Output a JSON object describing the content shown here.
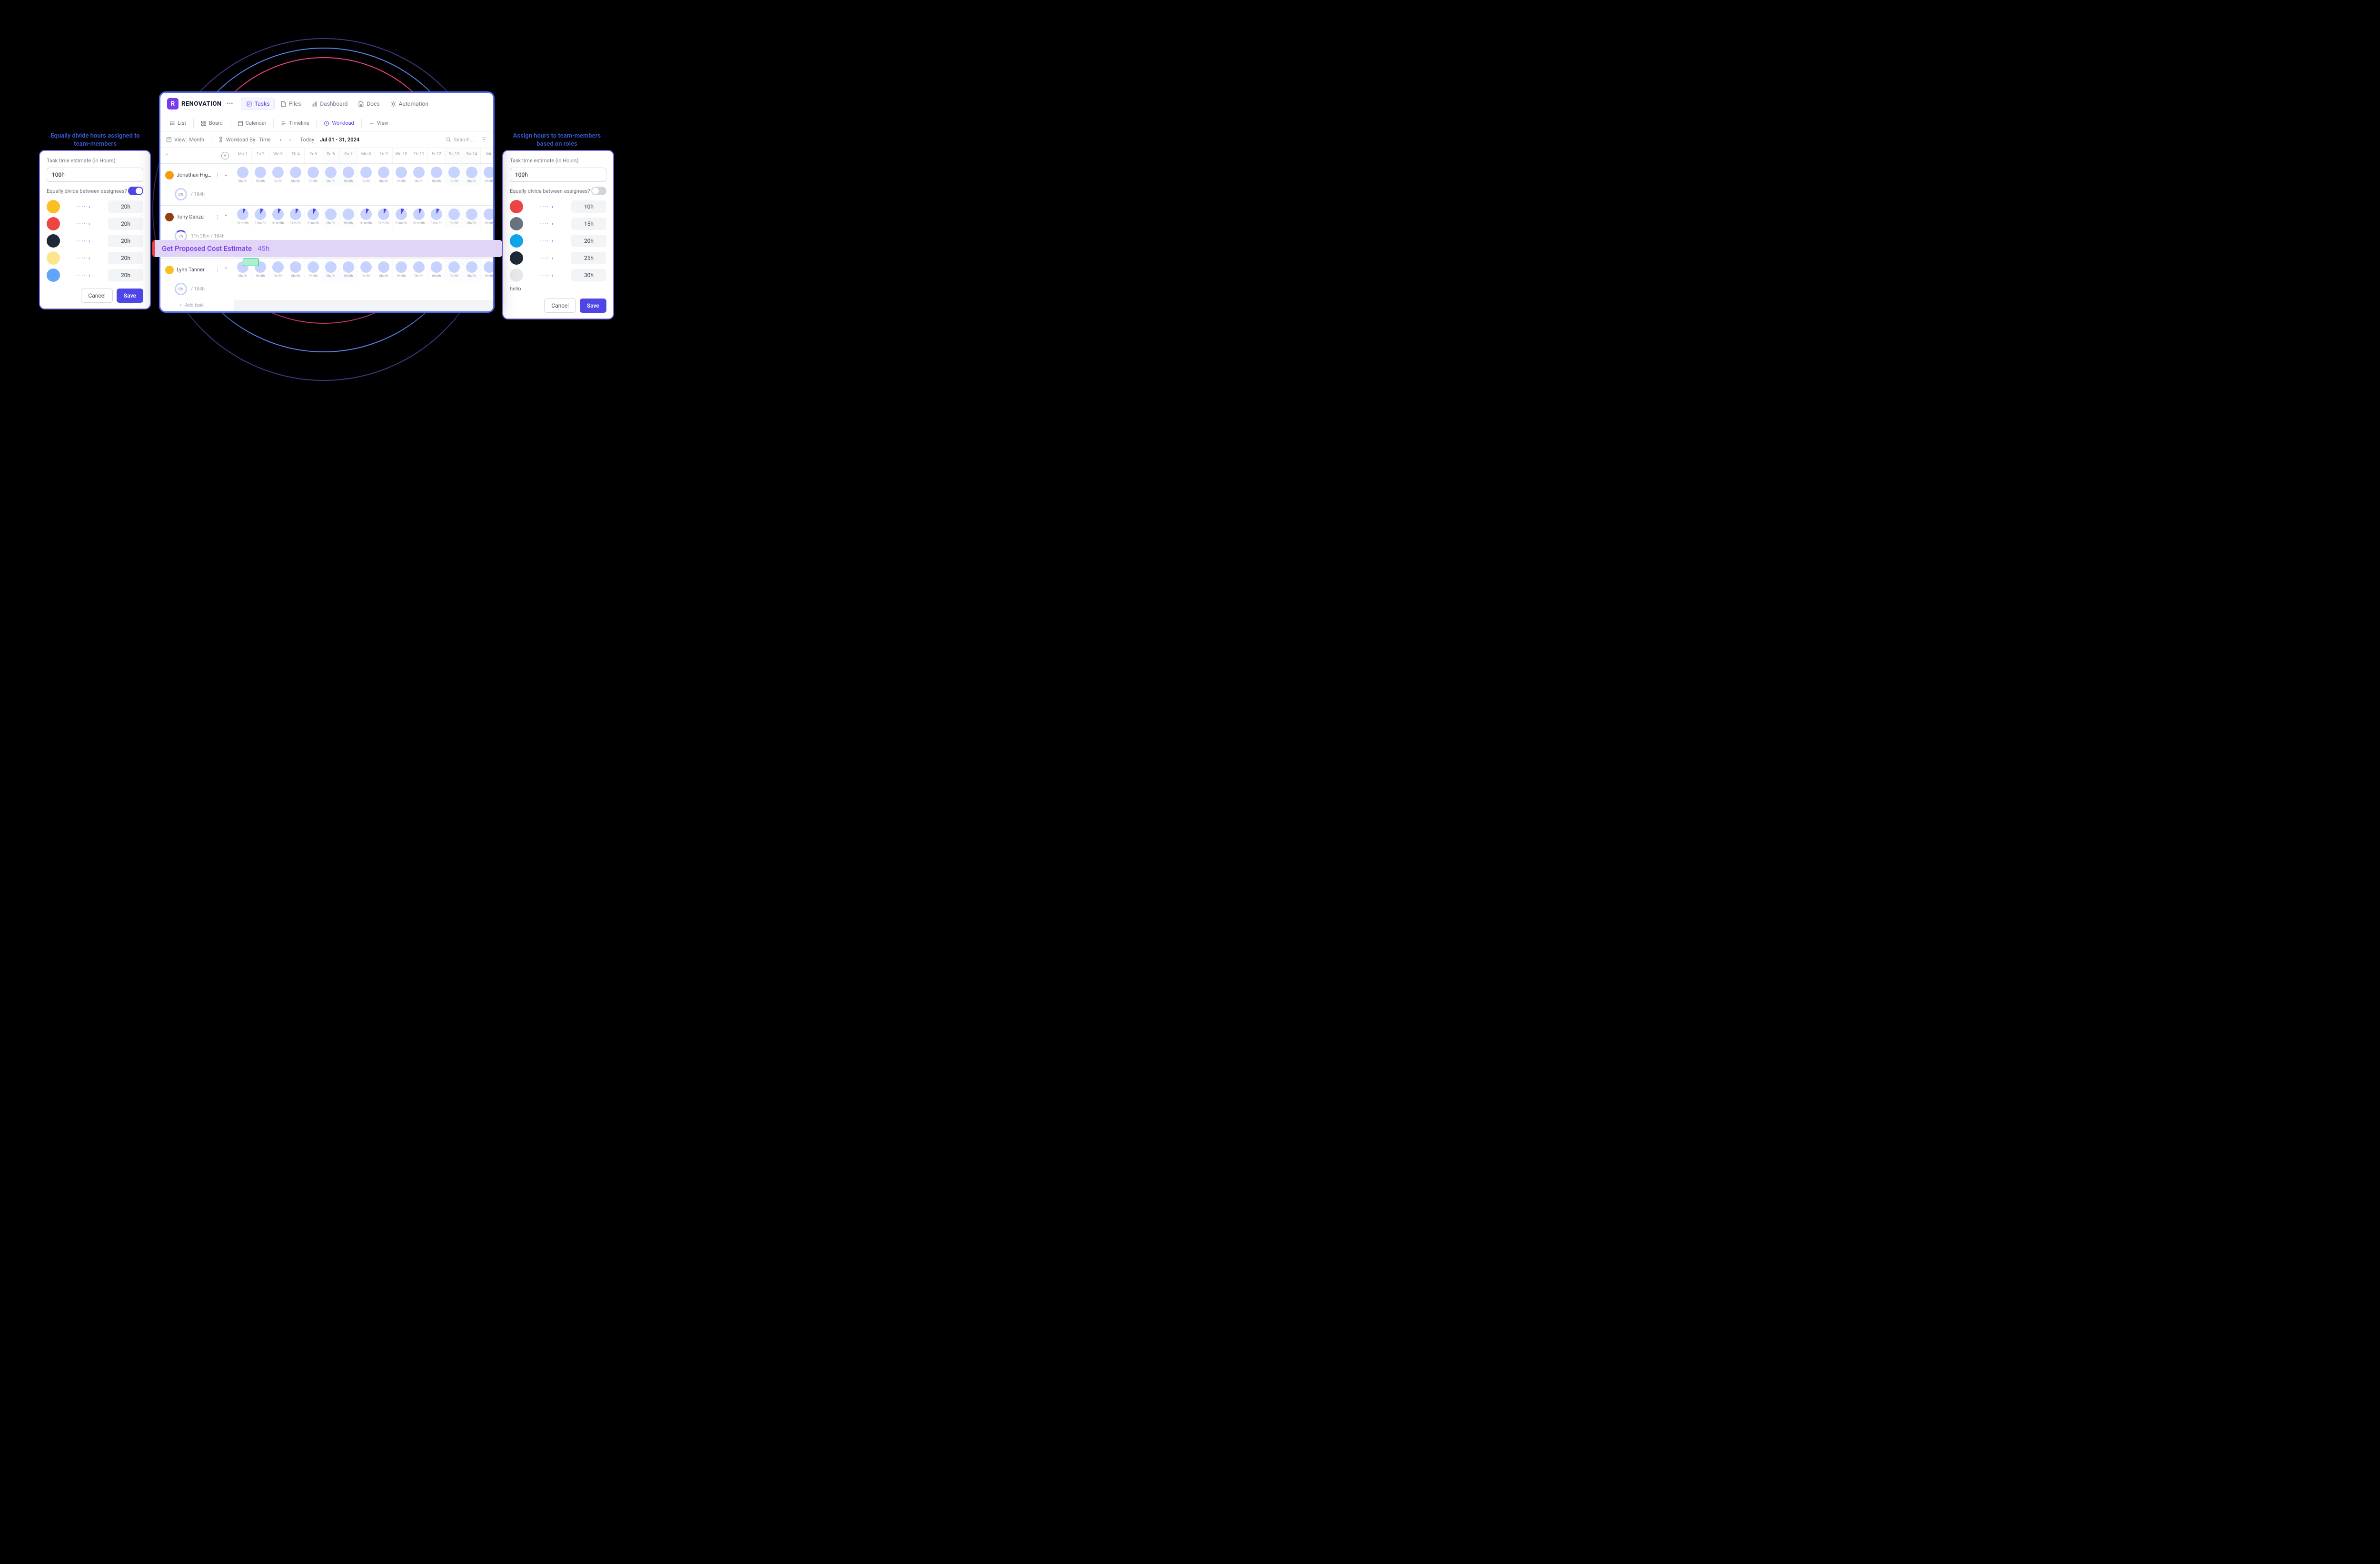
{
  "callouts": {
    "left": "Equally divide hours assigned to team-members",
    "right": "Assign hours  to team-members based on roles"
  },
  "leftPanel": {
    "title": "Task time estimate (in Hours)",
    "value": "100h",
    "divideLabel": "Equally divide between assignees?",
    "toggleOn": true,
    "members": [
      {
        "hours": "20h",
        "color": "#fbbf24"
      },
      {
        "hours": "20h",
        "color": "#ef4444"
      },
      {
        "hours": "20h",
        "color": "#1f2937"
      },
      {
        "hours": "20h",
        "color": "#fde68a"
      },
      {
        "hours": "20h",
        "color": "#60a5fa"
      }
    ],
    "cancel": "Cancel",
    "save": "Save"
  },
  "rightPanel": {
    "title": "Task time estimate (in Hours)",
    "value": "100h",
    "divideLabel": "Equally divide between assignees?",
    "toggleOn": false,
    "members": [
      {
        "hours": "10h",
        "color": "#ef4444"
      },
      {
        "hours": "15h",
        "color": "#6b7280"
      },
      {
        "hours": "20h",
        "color": "#0ea5e9"
      },
      {
        "hours": "25h",
        "color": "#1f2937"
      },
      {
        "hours": "30h",
        "color": "#e5e7eb"
      }
    ],
    "hello": "hello",
    "cancel": "Cancel",
    "save": "Save"
  },
  "app": {
    "logoLetter": "R",
    "title": "RENOVATION",
    "mainTabs": [
      {
        "label": "Tasks",
        "active": true
      },
      {
        "label": "Files"
      },
      {
        "label": "Dashboard"
      },
      {
        "label": "Docs"
      },
      {
        "label": "Automation"
      }
    ],
    "subTabs": [
      {
        "label": "List"
      },
      {
        "label": "Board"
      },
      {
        "label": "Calendar"
      },
      {
        "label": "Timeline"
      },
      {
        "label": "Workload",
        "active": true
      },
      {
        "label": "View"
      }
    ],
    "filters": {
      "viewLabel": "View:",
      "viewValue": "Month",
      "workloadLabel": "Workload By:",
      "workloadValue": "Time",
      "today": "Today",
      "range": "Jul 01 - 31, 2024",
      "searchPlaceholder": "Search ..."
    },
    "days": [
      {
        "label": "Mo 1"
      },
      {
        "label": "Tu 2"
      },
      {
        "label": "We 3"
      },
      {
        "label": "Th 4"
      },
      {
        "label": "Fr 5"
      },
      {
        "label": "Sa 6",
        "weekend": true
      },
      {
        "label": "Su 7",
        "weekend": true
      },
      {
        "label": "Mo 8"
      },
      {
        "label": "Tu 9"
      },
      {
        "label": "We 10"
      },
      {
        "label": "Th 11"
      },
      {
        "label": "Fr 12"
      },
      {
        "label": "Sa 13",
        "weekend": true
      },
      {
        "label": "Su 14",
        "weekend": true
      },
      {
        "label": "Mo"
      }
    ],
    "people": [
      {
        "name": "Jonathan Higgins",
        "avatar": "#f59e0b",
        "expanded": false,
        "pct": "0%",
        "stat": "/ 184h",
        "cells": [
          {
            "label": "0h/8h"
          },
          {
            "label": "0h/8h"
          },
          {
            "label": "0h/8h"
          },
          {
            "label": "0h/8h"
          },
          {
            "label": "0h/8h"
          },
          {
            "label": "0h/0h",
            "weekend": true
          },
          {
            "label": "0h/0h",
            "weekend": true
          },
          {
            "label": "0h/8h"
          },
          {
            "label": "0h/8h"
          },
          {
            "label": "0h/8h"
          },
          {
            "label": "0h/8h"
          },
          {
            "label": "0h/8h"
          },
          {
            "label": "0h/0h",
            "weekend": true
          },
          {
            "label": "0h/0h",
            "weekend": true
          },
          {
            "label": "0h/8h"
          }
        ]
      },
      {
        "name": "Tony Danza",
        "avatar": "#92400e",
        "expanded": true,
        "pct": "7%",
        "stat": "11h 38m / 184h",
        "partial": true,
        "cells": [
          {
            "label": "31m/8h",
            "partial": true
          },
          {
            "label": "31m/8h",
            "partial": true
          },
          {
            "label": "31m/8h",
            "partial": true
          },
          {
            "label": "31m/8h",
            "partial": true
          },
          {
            "label": "31m/8h",
            "partial": true
          },
          {
            "label": "0h/0h",
            "weekend": true
          },
          {
            "label": "0h/0h",
            "weekend": true
          },
          {
            "label": "31m/8h",
            "partial": true
          },
          {
            "label": "31m/8h",
            "partial": true
          },
          {
            "label": "31m/8h",
            "partial": true
          },
          {
            "label": "31m/8h",
            "partial": true
          },
          {
            "label": "31m/8h",
            "partial": true
          },
          {
            "label": "0h/0h",
            "weekend": true
          },
          {
            "label": "0h/0h",
            "weekend": true
          },
          {
            "label": "0h/8h"
          }
        ],
        "addTask": "Add task"
      },
      {
        "name": "Lynn Tanner",
        "avatar": "#fbbf24",
        "expanded": true,
        "pct": "0%",
        "stat": "/ 184h",
        "cells": [
          {
            "label": "0h/8h"
          },
          {
            "label": "0h/8h"
          },
          {
            "label": "0h/8h"
          },
          {
            "label": "0h/8h"
          },
          {
            "label": "0h/8h"
          },
          {
            "label": "0h/0h",
            "weekend": true
          },
          {
            "label": "0h/0h",
            "weekend": true
          },
          {
            "label": "0h/8h"
          },
          {
            "label": "0h/8h"
          },
          {
            "label": "0h/8h"
          },
          {
            "label": "0h/8h"
          },
          {
            "label": "0h/8h"
          },
          {
            "label": "0h/0h",
            "weekend": true
          },
          {
            "label": "0h/0h",
            "weekend": true
          },
          {
            "label": "0h/8h"
          }
        ],
        "addTask": "Add task"
      }
    ]
  },
  "taskBar": {
    "title": "Get Proposed Cost Estimate",
    "hours": "45h"
  }
}
